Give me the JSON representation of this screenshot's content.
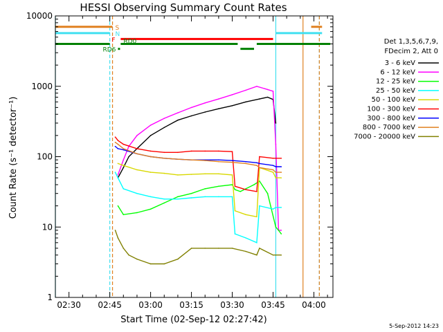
{
  "chart_data": {
    "type": "line",
    "title": "HESSI Observing Summary Count Rates",
    "xlabel": "Start Time (02-Sep-12 02:27:42)",
    "ylabel": "Count Rate (s⁻¹ detector⁻¹)",
    "yscale": "log",
    "ylim": [
      1,
      10000
    ],
    "xlim": [
      "02:25",
      "04:07"
    ],
    "x_ticks": [
      "02:30",
      "02:45",
      "03:00",
      "03:15",
      "03:30",
      "03:45",
      "04:00"
    ],
    "y_ticks": [
      "1",
      "10",
      "100",
      "1000",
      "10000"
    ],
    "timestamp": "5-Sep-2012 14:23",
    "legend": {
      "header": [
        "Det 1,3,5,6,7,9,",
        "FDecim 2, Att 0"
      ],
      "placement": "right"
    },
    "series": [
      {
        "name": "3 - 6 keV",
        "color": "#000000",
        "x": [
          "02:48",
          "02:50",
          "02:52",
          "02:55",
          "03:00",
          "03:05",
          "03:10",
          "03:15",
          "03:20",
          "03:25",
          "03:30",
          "03:35",
          "03:40",
          "03:43",
          "03:45",
          "03:46"
        ],
        "values": [
          50,
          70,
          100,
          130,
          200,
          260,
          330,
          380,
          430,
          480,
          530,
          600,
          660,
          700,
          650,
          300
        ]
      },
      {
        "name": "6 - 12 keV",
        "color": "#ff00ff",
        "x": [
          "02:48",
          "02:50",
          "02:52",
          "02:55",
          "03:00",
          "03:05",
          "03:10",
          "03:15",
          "03:20",
          "03:25",
          "03:30",
          "03:35",
          "03:39",
          "03:43",
          "03:45",
          "03:46",
          "03:47",
          "03:48"
        ],
        "values": [
          55,
          90,
          140,
          200,
          280,
          350,
          420,
          500,
          580,
          660,
          760,
          880,
          1000,
          900,
          850,
          150,
          9,
          9
        ]
      },
      {
        "name": "12 - 25 keV",
        "color": "#00ff00",
        "x": [
          "02:48",
          "02:50",
          "02:55",
          "03:00",
          "03:05",
          "03:10",
          "03:15",
          "03:20",
          "03:25",
          "03:30",
          "03:31",
          "03:33",
          "03:35",
          "03:38",
          "03:40",
          "03:43",
          "03:46",
          "03:47",
          "03:48"
        ],
        "values": [
          20,
          15,
          16,
          18,
          22,
          27,
          30,
          35,
          38,
          40,
          34,
          32,
          35,
          40,
          45,
          30,
          10,
          9,
          8
        ]
      },
      {
        "name": "25 - 50 keV",
        "color": "#00ffff",
        "x": [
          "02:47",
          "02:48",
          "02:50",
          "02:55",
          "03:00",
          "03:05",
          "03:10",
          "03:15",
          "03:20",
          "03:25",
          "03:30",
          "03:31",
          "03:35",
          "03:39",
          "03:40",
          "03:45",
          "03:46",
          "03:48"
        ],
        "values": [
          60,
          50,
          35,
          30,
          27,
          25,
          25,
          26,
          27,
          27,
          27,
          8,
          7,
          6,
          20,
          18,
          19,
          19
        ]
      },
      {
        "name": "50 - 100 keV",
        "color": "#d8d800",
        "x": [
          "02:48",
          "02:50",
          "02:55",
          "03:00",
          "03:05",
          "03:10",
          "03:15",
          "03:20",
          "03:25",
          "03:30",
          "03:31",
          "03:35",
          "03:39",
          "03:40",
          "03:45",
          "03:46",
          "03:48"
        ],
        "values": [
          80,
          75,
          65,
          60,
          58,
          55,
          56,
          57,
          57,
          55,
          17,
          15,
          14,
          70,
          60,
          50,
          50
        ]
      },
      {
        "name": "100 - 300 keV",
        "color": "#ff0000",
        "x": [
          "02:47",
          "02:48",
          "02:50",
          "02:55",
          "03:00",
          "03:05",
          "03:10",
          "03:15",
          "03:20",
          "03:25",
          "03:30",
          "03:31",
          "03:35",
          "03:39",
          "03:40",
          "03:45",
          "03:46",
          "03:48"
        ],
        "values": [
          190,
          170,
          150,
          130,
          120,
          115,
          115,
          120,
          120,
          120,
          118,
          38,
          34,
          32,
          100,
          95,
          95,
          95
        ]
      },
      {
        "name": "300 - 800 keV",
        "color": "#0000ff",
        "x": [
          "02:47",
          "02:48",
          "02:50",
          "02:55",
          "03:00",
          "03:05",
          "03:10",
          "03:15",
          "03:20",
          "03:25",
          "03:30",
          "03:35",
          "03:39",
          "03:40",
          "03:45",
          "03:46",
          "03:48"
        ],
        "values": [
          140,
          130,
          125,
          110,
          100,
          95,
          92,
          90,
          90,
          90,
          88,
          85,
          82,
          80,
          75,
          72,
          72
        ]
      },
      {
        "name": "800 - 7000 keV",
        "color": "#e08020",
        "x": [
          "02:47",
          "02:48",
          "02:50",
          "02:55",
          "03:00",
          "03:05",
          "03:10",
          "03:15",
          "03:20",
          "03:25",
          "03:30",
          "03:35",
          "03:39",
          "03:40",
          "03:45",
          "03:46",
          "03:48"
        ],
        "values": [
          160,
          150,
          130,
          110,
          100,
          95,
          92,
          90,
          88,
          85,
          83,
          80,
          75,
          70,
          65,
          60,
          60
        ]
      },
      {
        "name": "7000 - 20000 keV",
        "color": "#808000",
        "x": [
          "02:47",
          "02:48",
          "02:50",
          "02:52",
          "02:55",
          "03:00",
          "03:05",
          "03:10",
          "03:15",
          "03:20",
          "03:25",
          "03:30",
          "03:35",
          "03:39",
          "03:40",
          "03:45",
          "03:46",
          "03:48"
        ],
        "values": [
          9,
          7,
          5,
          4,
          3.5,
          3,
          3,
          3.5,
          5,
          5,
          5,
          5,
          4.5,
          4,
          5,
          4,
          4,
          4
        ]
      }
    ],
    "flag_bars": [
      {
        "label": "S",
        "color": "#e08020",
        "y": 7000,
        "segments": [
          [
            "02:25",
            "02:46"
          ],
          [
            "03:59",
            "04:03"
          ]
        ]
      },
      {
        "label": "N",
        "color": "#40e0f0",
        "y": 5700,
        "segments": [
          [
            "02:25",
            "02:45"
          ],
          [
            "03:46",
            "04:03"
          ]
        ]
      },
      {
        "label": "F",
        "color": "#ff0000",
        "y": 4700,
        "segments": [
          [
            "02:49",
            "03:45"
          ]
        ]
      },
      {
        "label": "RD0",
        "color": "#008000",
        "y": 4000,
        "segments": [
          [
            "02:25",
            "02:45"
          ],
          [
            "02:49",
            "03:32"
          ],
          [
            "03:39",
            "04:06"
          ]
        ]
      },
      {
        "label": "RD6",
        "color": "#008000",
        "y": 3400,
        "segments": [
          [
            "02:48",
            "02:48"
          ],
          [
            "03:33",
            "03:38"
          ]
        ]
      }
    ],
    "vertical_markers": [
      {
        "x": "02:25",
        "color": "#40e0f0",
        "style": "solid"
      },
      {
        "x": "02:45",
        "color": "#40e0f0",
        "style": "dashed"
      },
      {
        "x": "02:46",
        "color": "#e08020",
        "style": "dashed"
      },
      {
        "x": "03:46",
        "color": "#40e0f0",
        "style": "solid"
      },
      {
        "x": "03:56",
        "color": "#e08020",
        "style": "solid"
      },
      {
        "x": "04:02",
        "color": "#40e0f0",
        "style": "dashed"
      },
      {
        "x": "04:02",
        "color": "#e08020",
        "style": "dashed"
      }
    ]
  }
}
